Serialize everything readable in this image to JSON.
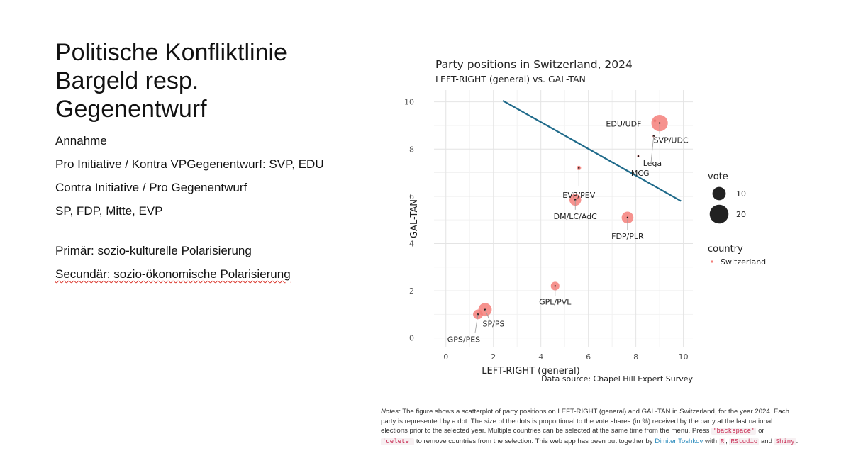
{
  "slide": {
    "title": "Politische Konfliktlinie Bargeld resp. Gegenentwurf",
    "items": [
      {
        "text": "Annahme",
        "gap": false,
        "squiggle": false
      },
      {
        "text": "Pro Initiative / Kontra VPGegenentwurf: SVP, EDU",
        "gap": false,
        "squiggle": false
      },
      {
        "text": "Contra Initiative / Pro Gegenentwurf",
        "gap": false,
        "squiggle": false
      },
      {
        "text": "SP, FDP, Mitte, EVP",
        "gap": false,
        "squiggle": false
      },
      {
        "text": "Primär: sozio-kulturelle Polarisierung",
        "gap": true,
        "squiggle": false
      },
      {
        "text": "Secundär: sozio-ökonomische Polarisierung",
        "gap": false,
        "squiggle": true
      }
    ]
  },
  "chart_data": {
    "type": "scatter",
    "title": "Party positions in Switzerland, 2024",
    "subtitle": "LEFT-RIGHT (general) vs. GAL-TAN",
    "xlabel": "LEFT-RIGHT (general)",
    "ylabel": "GAL-TAN",
    "xlim": [
      -0.5,
      10.4
    ],
    "ylim": [
      -0.4,
      10.5
    ],
    "xticks": [
      0,
      2,
      4,
      6,
      8,
      10
    ],
    "yticks": [
      0,
      2,
      4,
      6,
      8,
      10
    ],
    "grid": true,
    "caption": "Data source: Chapel Hill Expert Survey",
    "point_color": "#f47f7a",
    "line_color": "#1f6a8a",
    "points": [
      {
        "label": "EDU/UDF",
        "x": 8.8,
        "y": 9.2,
        "vote": 1.0
      },
      {
        "label": "SVP/UDC",
        "x": 9.0,
        "y": 9.1,
        "vote": 27.9
      },
      {
        "label": "Lega",
        "x": 8.1,
        "y": 7.7,
        "vote": 0.4
      },
      {
        "label": "MCG",
        "x": 8.75,
        "y": 8.55,
        "vote": 0.4
      },
      {
        "label": "EVP/PEV",
        "x": 5.6,
        "y": 7.2,
        "vote": 2.0
      },
      {
        "label": "DM/LC/AdC",
        "x": 5.45,
        "y": 5.85,
        "vote": 14.1
      },
      {
        "label": "FDP/PLR",
        "x": 7.65,
        "y": 5.1,
        "vote": 14.3
      },
      {
        "label": "GPL/PVL",
        "x": 4.6,
        "y": 2.2,
        "vote": 7.6
      },
      {
        "label": "SP/PS",
        "x": 1.65,
        "y": 1.2,
        "vote": 18.3
      },
      {
        "label": "GPS/PES",
        "x": 1.35,
        "y": 1.0,
        "vote": 9.8
      }
    ],
    "fit_line": {
      "x": [
        2.4,
        9.9
      ],
      "y": [
        10.05,
        5.8
      ]
    },
    "legend": {
      "size_title": "vote",
      "size_entries": [
        {
          "label": "10",
          "value": 10
        },
        {
          "label": "20",
          "value": 20
        }
      ],
      "color_title": "country",
      "color_entries": [
        {
          "label": "Switzerland"
        }
      ]
    }
  },
  "notes": {
    "label": "Notes:",
    "text1": " The figure shows a scatterplot of party positions on LEFT-RIGHT (general) and GAL-TAN in Switzerland, for the year 2024. Each party is represented by a dot. The size of the dots is proportional to the vote shares (in %) received by the party at the last national elections prior to the selected year. Multiple countries can be selected at the same time from the menu. Press ",
    "code1": "'backspace'",
    "text2": " or ",
    "code2": "'delete'",
    "text3": " to remove countries from the selection. This web app has been put together by ",
    "link": "Dimiter Toshkov",
    "text4": " with ",
    "code3": "R",
    "text5": ", ",
    "code4": "RStudio",
    "text6": " and ",
    "code5": "Shiny",
    "text7": "."
  }
}
